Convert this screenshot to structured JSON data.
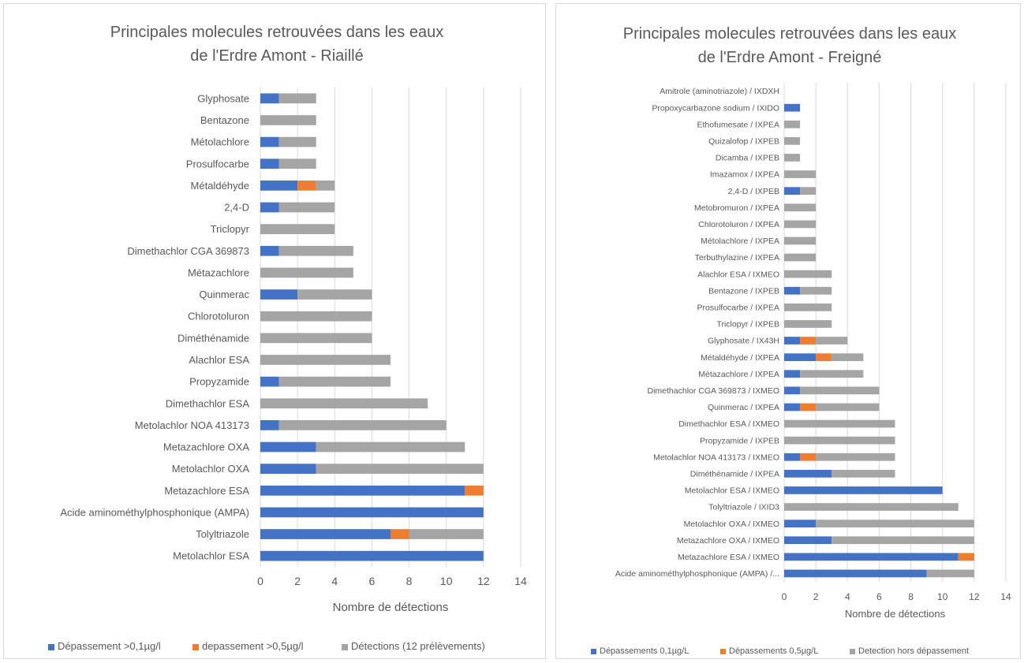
{
  "colors": {
    "series1": "#4472c4",
    "series2": "#ed7d31",
    "series3": "#a5a5a5",
    "grid": "#d9d9d9",
    "text": "#595959"
  },
  "chart_data": [
    {
      "type": "bar",
      "orientation": "horizontal",
      "stacked": true,
      "title_lines": [
        "Principales molecules retrouvées dans les eaux",
        "de l'Erdre Amont - Riaillé"
      ],
      "xlabel": "Nombre de détections",
      "ylabel": "",
      "xlim": [
        0,
        14
      ],
      "xticks": [
        "0",
        "2",
        "4",
        "6",
        "8",
        "10",
        "12",
        "14"
      ],
      "grid": true,
      "legend_position": "bottom",
      "categories": [
        "Glyphosate",
        "Bentazone",
        "Métolachlore",
        "Prosulfocarbe",
        "Métaldéhyde",
        "2,4-D",
        "Triclopyr",
        "Dimethachlor CGA 369873",
        "Métazachlore",
        "Quinmerac",
        "Chlorotoluron",
        "Diméthénamide",
        "Alachlor ESA",
        "Propyzamide",
        "Dimethachlor ESA",
        "Metolachlor NOA 413173",
        "Metazachlore OXA",
        "Metolachlor OXA",
        "Metazachlore ESA",
        "Acide aminométhylphosphonique (AMPA)",
        "Tolyltriazole",
        "Metolachlor ESA"
      ],
      "series": [
        {
          "name": "Dépassement >0,1µg/l",
          "values": [
            1,
            0,
            1,
            1,
            2,
            1,
            0,
            1,
            0,
            2,
            0,
            0,
            0,
            1,
            0,
            1,
            3,
            3,
            11,
            12,
            7,
            12
          ]
        },
        {
          "name": "depassement >0,5µg/l",
          "values": [
            0,
            0,
            0,
            0,
            1,
            0,
            0,
            0,
            0,
            0,
            0,
            0,
            0,
            0,
            0,
            0,
            0,
            0,
            1,
            0,
            1,
            0
          ]
        },
        {
          "name": "Détections (12 prélèvements)",
          "values": [
            2,
            3,
            2,
            2,
            1,
            3,
            4,
            4,
            5,
            4,
            6,
            6,
            7,
            6,
            9,
            9,
            8,
            9,
            0,
            0,
            4,
            0
          ]
        }
      ]
    },
    {
      "type": "bar",
      "orientation": "horizontal",
      "stacked": true,
      "title_lines": [
        "Principales molecules retrouvées dans les eaux",
        "de l'Erdre Amont - Freigné"
      ],
      "xlabel": "Nombre de détections",
      "ylabel": "",
      "xlim": [
        0,
        14
      ],
      "xticks": [
        "0",
        "2",
        "4",
        "6",
        "8",
        "10",
        "12",
        "14"
      ],
      "grid": true,
      "legend_position": "bottom",
      "categories": [
        "Amitrole (aminotriazole) / IXDXH",
        "Propoxycarbazone sodium / IXIDO",
        "Ethofumesate / IXPEA",
        "Quizalofop / IXPEB",
        "Dicamba / IXPEB",
        "Imazamox / IXPEA",
        "2,4-D / IXPEB",
        "Metobromuron / IXPEA",
        "Chlorotoluron / IXPEA",
        "Métolachlore / IXPEA",
        "Terbuthylazine / IXPEA",
        "Alachlor ESA / IXMEO",
        "Bentazone / IXPEB",
        "Prosulfocarbe / IXPEA",
        "Triclopyr / IXPEB",
        "Glyphosate / IX43H",
        "Métaldéhyde / IXPEA",
        "Métazachlore / IXPEA",
        "Dimethachlor CGA 369873 / IXMEO",
        "Quinmerac / IXPEA",
        "Dimethachlor ESA / IXMEO",
        "Propyzamide / IXPEB",
        "Metolachlor NOA 413173 / IXMEO",
        "Diméthénamide / IXPEA",
        "Metolachlor ESA / IXMEO",
        "Tolyltriazole / IXID3",
        "Metolachlor OXA / IXMEO",
        "Metazachlore OXA / IXMEO",
        "Metazachlore ESA / IXMEO",
        "Acide aminométhylphosphonique (AMPA) /..."
      ],
      "series": [
        {
          "name": "Dépassements 0,1µg/L",
          "values": [
            0,
            1,
            0,
            0,
            0,
            0,
            1,
            0,
            0,
            0,
            0,
            0,
            1,
            0,
            0,
            1,
            2,
            1,
            1,
            1,
            0,
            0,
            1,
            3,
            10,
            0,
            2,
            3,
            11,
            9
          ]
        },
        {
          "name": "Dépassements 0,5µg/L",
          "values": [
            0,
            0,
            0,
            0,
            0,
            0,
            0,
            0,
            0,
            0,
            0,
            0,
            0,
            0,
            0,
            1,
            1,
            0,
            0,
            1,
            0,
            0,
            1,
            0,
            0,
            0,
            0,
            0,
            1,
            0
          ]
        },
        {
          "name": "Detection hors dépassement",
          "values": [
            0,
            0,
            1,
            1,
            1,
            2,
            1,
            2,
            2,
            2,
            2,
            3,
            2,
            3,
            3,
            2,
            2,
            4,
            5,
            4,
            7,
            7,
            5,
            4,
            0,
            11,
            10,
            9,
            0,
            3
          ]
        }
      ]
    }
  ]
}
